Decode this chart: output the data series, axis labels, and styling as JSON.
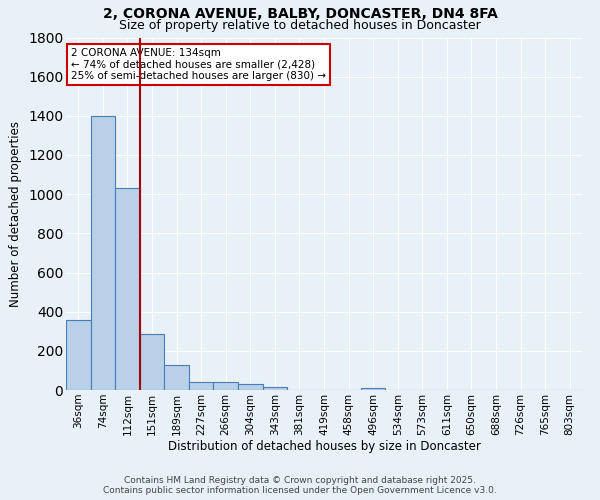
{
  "title1": "2, CORONA AVENUE, BALBY, DONCASTER, DN4 8FA",
  "title2": "Size of property relative to detached houses in Doncaster",
  "xlabel": "Distribution of detached houses by size in Doncaster",
  "ylabel": "Number of detached properties",
  "bar_labels": [
    "36sqm",
    "74sqm",
    "112sqm",
    "151sqm",
    "189sqm",
    "227sqm",
    "266sqm",
    "304sqm",
    "343sqm",
    "381sqm",
    "419sqm",
    "458sqm",
    "496sqm",
    "534sqm",
    "573sqm",
    "611sqm",
    "650sqm",
    "688sqm",
    "726sqm",
    "765sqm",
    "803sqm"
  ],
  "bar_values": [
    360,
    1400,
    1030,
    285,
    130,
    42,
    42,
    30,
    15,
    0,
    0,
    0,
    12,
    0,
    0,
    0,
    0,
    0,
    0,
    0,
    0
  ],
  "bar_color": "#b8d0e8",
  "bar_edge_color": "#4a7db5",
  "background_color": "#e8f0f8",
  "grid_color": "#ffffff",
  "annotation_line1": "2 CORONA AVENUE: 134sqm",
  "annotation_line2": "← 74% of detached houses are smaller (2,428)",
  "annotation_line3": "25% of semi-detached houses are larger (830) →",
  "annotation_box_color": "#ffffff",
  "annotation_box_edge_color": "#cc0000",
  "red_line_x": 2.5,
  "ylim": [
    0,
    1800
  ],
  "yticks": [
    0,
    200,
    400,
    600,
    800,
    1000,
    1200,
    1400,
    1600,
    1800
  ],
  "footer_line1": "Contains HM Land Registry data © Crown copyright and database right 2025.",
  "footer_line2": "Contains public sector information licensed under the Open Government Licence v3.0.",
  "title1_fontsize": 10,
  "title2_fontsize": 9,
  "axis_label_fontsize": 8.5,
  "tick_fontsize": 7.5,
  "annotation_fontsize": 7.5,
  "footer_fontsize": 6.5
}
